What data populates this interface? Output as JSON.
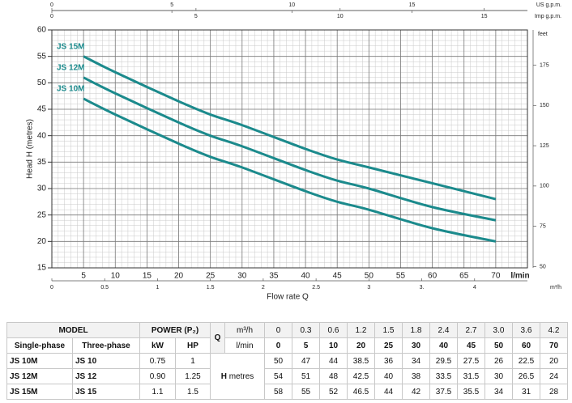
{
  "chart_data": {
    "type": "line",
    "x_label": "Flow rate Q",
    "x_unit": "l/min",
    "y_label": "Head H (metres)",
    "x": [
      5,
      10,
      20,
      25,
      30,
      40,
      45,
      50,
      60,
      70
    ],
    "series": [
      {
        "name": "JS 10M",
        "color": "#1b8a8c",
        "values": [
          47,
          44,
          38.5,
          36,
          34,
          29.5,
          27.5,
          26,
          22.5,
          20
        ]
      },
      {
        "name": "JS 12M",
        "color": "#1b8a8c",
        "values": [
          51,
          48,
          42.5,
          40,
          38,
          33.5,
          31.5,
          30,
          26.5,
          24
        ]
      },
      {
        "name": "JS 15M",
        "color": "#1b8a8c",
        "values": [
          55,
          52,
          46.5,
          44,
          42,
          37.5,
          35.5,
          34,
          31,
          28
        ]
      }
    ],
    "xlim": [
      0,
      75
    ],
    "xticks": [
      5,
      10,
      15,
      20,
      25,
      30,
      35,
      40,
      45,
      50,
      55,
      60,
      65,
      70
    ],
    "ylim": [
      15,
      60
    ],
    "yticks": [
      15,
      20,
      25,
      30,
      35,
      40,
      45,
      50,
      55,
      60
    ],
    "grid": true,
    "us_gpm_axis": {
      "label": "US g.p.m.",
      "lim": [
        0,
        19.81
      ],
      "ticks": [
        0,
        5,
        10,
        15
      ]
    },
    "imp_gpm_axis": {
      "label": "Imp g.p.m.",
      "lim": [
        0,
        16.5
      ],
      "ticks": [
        0,
        5,
        10,
        15
      ]
    },
    "m3h_axis": {
      "label": "m³/h",
      "lim": [
        0,
        4.5
      ],
      "ticks": [
        0,
        0.5,
        1,
        1.5,
        2,
        2.5,
        3,
        {
          "value": 3.5,
          "label": "3."
        },
        4
      ]
    },
    "feet_axis": {
      "label": "feet",
      "lim": [
        49.21,
        196.85
      ],
      "ticks": [
        50,
        75,
        100,
        125,
        150,
        175
      ]
    }
  },
  "table": {
    "model": "MODEL",
    "power": "POWER (P₂)",
    "q": "Q",
    "m3h_unit": "m³/h",
    "lmin_unit": "l/min",
    "columns": [
      "Single-phase",
      "Three-phase",
      "kW",
      "HP"
    ],
    "m3h": [
      "0",
      "0.3",
      "0.6",
      "1.2",
      "1.5",
      "1.8",
      "2.4",
      "2.7",
      "3.0",
      "3.6",
      "4.2"
    ],
    "lmin": [
      "0",
      "5",
      "10",
      "20",
      "25",
      "30",
      "40",
      "45",
      "50",
      "60",
      "70"
    ],
    "h_symbol": "H",
    "h_unit": "metres",
    "rows": [
      {
        "single": "JS 10M",
        "three": "JS 10",
        "kw": "0.75",
        "hp": "1",
        "h": [
          "50",
          "47",
          "44",
          "38.5",
          "36",
          "34",
          "29.5",
          "27.5",
          "26",
          "22.5",
          "20"
        ]
      },
      {
        "single": "JS 12M",
        "three": "JS 12",
        "kw": "0.90",
        "hp": "1.25",
        "h": [
          "54",
          "51",
          "48",
          "42.5",
          "40",
          "38",
          "33.5",
          "31.5",
          "30",
          "26.5",
          "24"
        ]
      },
      {
        "single": "JS 15M",
        "three": "JS 15",
        "kw": "1.1",
        "hp": "1.5",
        "h": [
          "58",
          "55",
          "52",
          "46.5",
          "44",
          "42",
          "37.5",
          "35.5",
          "34",
          "31",
          "28"
        ]
      }
    ]
  }
}
